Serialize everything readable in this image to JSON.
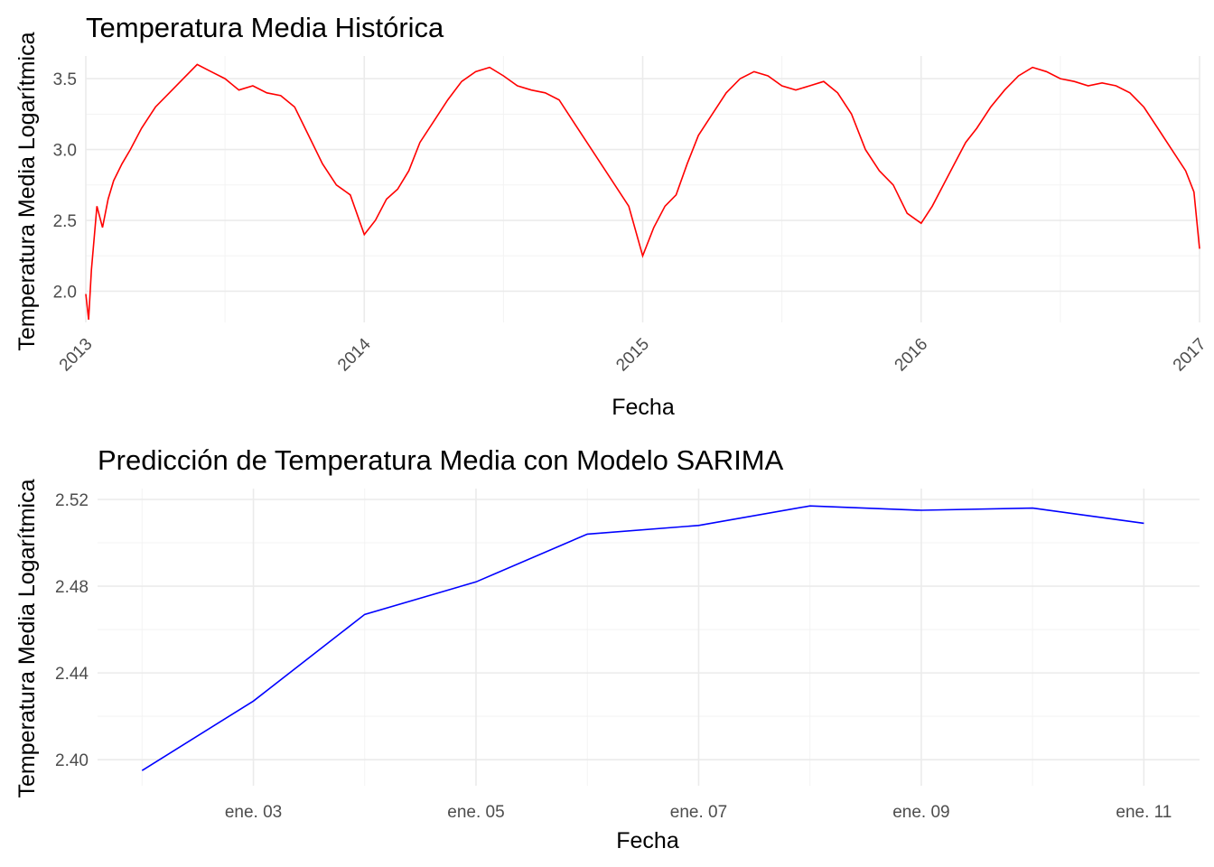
{
  "chart_data": [
    {
      "type": "line",
      "title": "Temperatura Media Histórica",
      "xlabel": "Fecha",
      "ylabel": "Temperatura Media Logarítmica",
      "xlim": [
        2013.0,
        2017.0
      ],
      "ylim": [
        1.78,
        3.66
      ],
      "x_ticks": [
        2013,
        2014,
        2015,
        2016,
        2017
      ],
      "x_tick_labels": [
        "2013",
        "2014",
        "2015",
        "2016",
        "2017"
      ],
      "y_ticks": [
        2.0,
        2.5,
        3.0,
        3.5
      ],
      "y_tick_labels": [
        "2.0",
        "2.5",
        "3.0",
        "3.5"
      ],
      "grid": true,
      "line_color": "#ff0000",
      "series": [
        {
          "x": [
            2013.0,
            2013.01,
            2013.02,
            2013.04,
            2013.06,
            2013.08,
            2013.1,
            2013.13,
            2013.16,
            2013.2,
            2013.25,
            2013.3,
            2013.35,
            2013.4,
            2013.45,
            2013.5,
            2013.55,
            2013.6,
            2013.65,
            2013.7,
            2013.75,
            2013.8,
            2013.85,
            2013.9,
            2013.95,
            2014.0,
            2014.04,
            2014.08,
            2014.12,
            2014.16,
            2014.2,
            2014.25,
            2014.3,
            2014.35,
            2014.4,
            2014.45,
            2014.5,
            2014.55,
            2014.6,
            2014.65,
            2014.7,
            2014.75,
            2014.8,
            2014.85,
            2014.9,
            2014.95,
            2015.0,
            2015.04,
            2015.08,
            2015.12,
            2015.16,
            2015.2,
            2015.25,
            2015.3,
            2015.35,
            2015.4,
            2015.45,
            2015.5,
            2015.55,
            2015.6,
            2015.65,
            2015.7,
            2015.75,
            2015.8,
            2015.85,
            2015.9,
            2015.95,
            2016.0,
            2016.04,
            2016.08,
            2016.12,
            2016.16,
            2016.2,
            2016.25,
            2016.3,
            2016.35,
            2016.4,
            2016.45,
            2016.5,
            2016.55,
            2016.6,
            2016.65,
            2016.7,
            2016.75,
            2016.8,
            2016.85,
            2016.9,
            2016.95,
            2016.98,
            2017.0
          ],
          "y": [
            1.98,
            1.8,
            2.15,
            2.6,
            2.45,
            2.65,
            2.78,
            2.9,
            3.0,
            3.15,
            3.3,
            3.4,
            3.5,
            3.6,
            3.55,
            3.5,
            3.42,
            3.45,
            3.4,
            3.38,
            3.3,
            3.1,
            2.9,
            2.75,
            2.68,
            2.4,
            2.5,
            2.65,
            2.72,
            2.85,
            3.05,
            3.2,
            3.35,
            3.48,
            3.55,
            3.58,
            3.52,
            3.45,
            3.42,
            3.4,
            3.35,
            3.2,
            3.05,
            2.9,
            2.75,
            2.6,
            2.25,
            2.45,
            2.6,
            2.68,
            2.9,
            3.1,
            3.25,
            3.4,
            3.5,
            3.55,
            3.52,
            3.45,
            3.42,
            3.45,
            3.48,
            3.4,
            3.25,
            3.0,
            2.85,
            2.75,
            2.55,
            2.48,
            2.6,
            2.75,
            2.9,
            3.05,
            3.15,
            3.3,
            3.42,
            3.52,
            3.58,
            3.55,
            3.5,
            3.48,
            3.45,
            3.47,
            3.45,
            3.4,
            3.3,
            3.15,
            3.0,
            2.85,
            2.7,
            2.3
          ]
        }
      ]
    },
    {
      "type": "line",
      "title": "Predicción de Temperatura Media con Modelo SARIMA",
      "xlabel": "Fecha",
      "ylabel": "Temperatura Media Logarítmica",
      "xlim": [
        1.6,
        11.5
      ],
      "ylim": [
        2.388,
        2.525
      ],
      "x_ticks": [
        3,
        5,
        7,
        9,
        11
      ],
      "x_tick_labels": [
        "ene. 03",
        "ene. 05",
        "ene. 07",
        "ene. 09",
        "ene. 11"
      ],
      "y_ticks": [
        2.4,
        2.44,
        2.48,
        2.52
      ],
      "y_tick_labels": [
        "2.40",
        "2.44",
        "2.48",
        "2.52"
      ],
      "grid": true,
      "line_color": "#0000ff",
      "series": [
        {
          "x": [
            2,
            3,
            4,
            5,
            6,
            7,
            8,
            9,
            10,
            11
          ],
          "y": [
            2.395,
            2.427,
            2.467,
            2.482,
            2.504,
            2.508,
            2.517,
            2.515,
            2.516,
            2.509
          ]
        }
      ]
    }
  ]
}
